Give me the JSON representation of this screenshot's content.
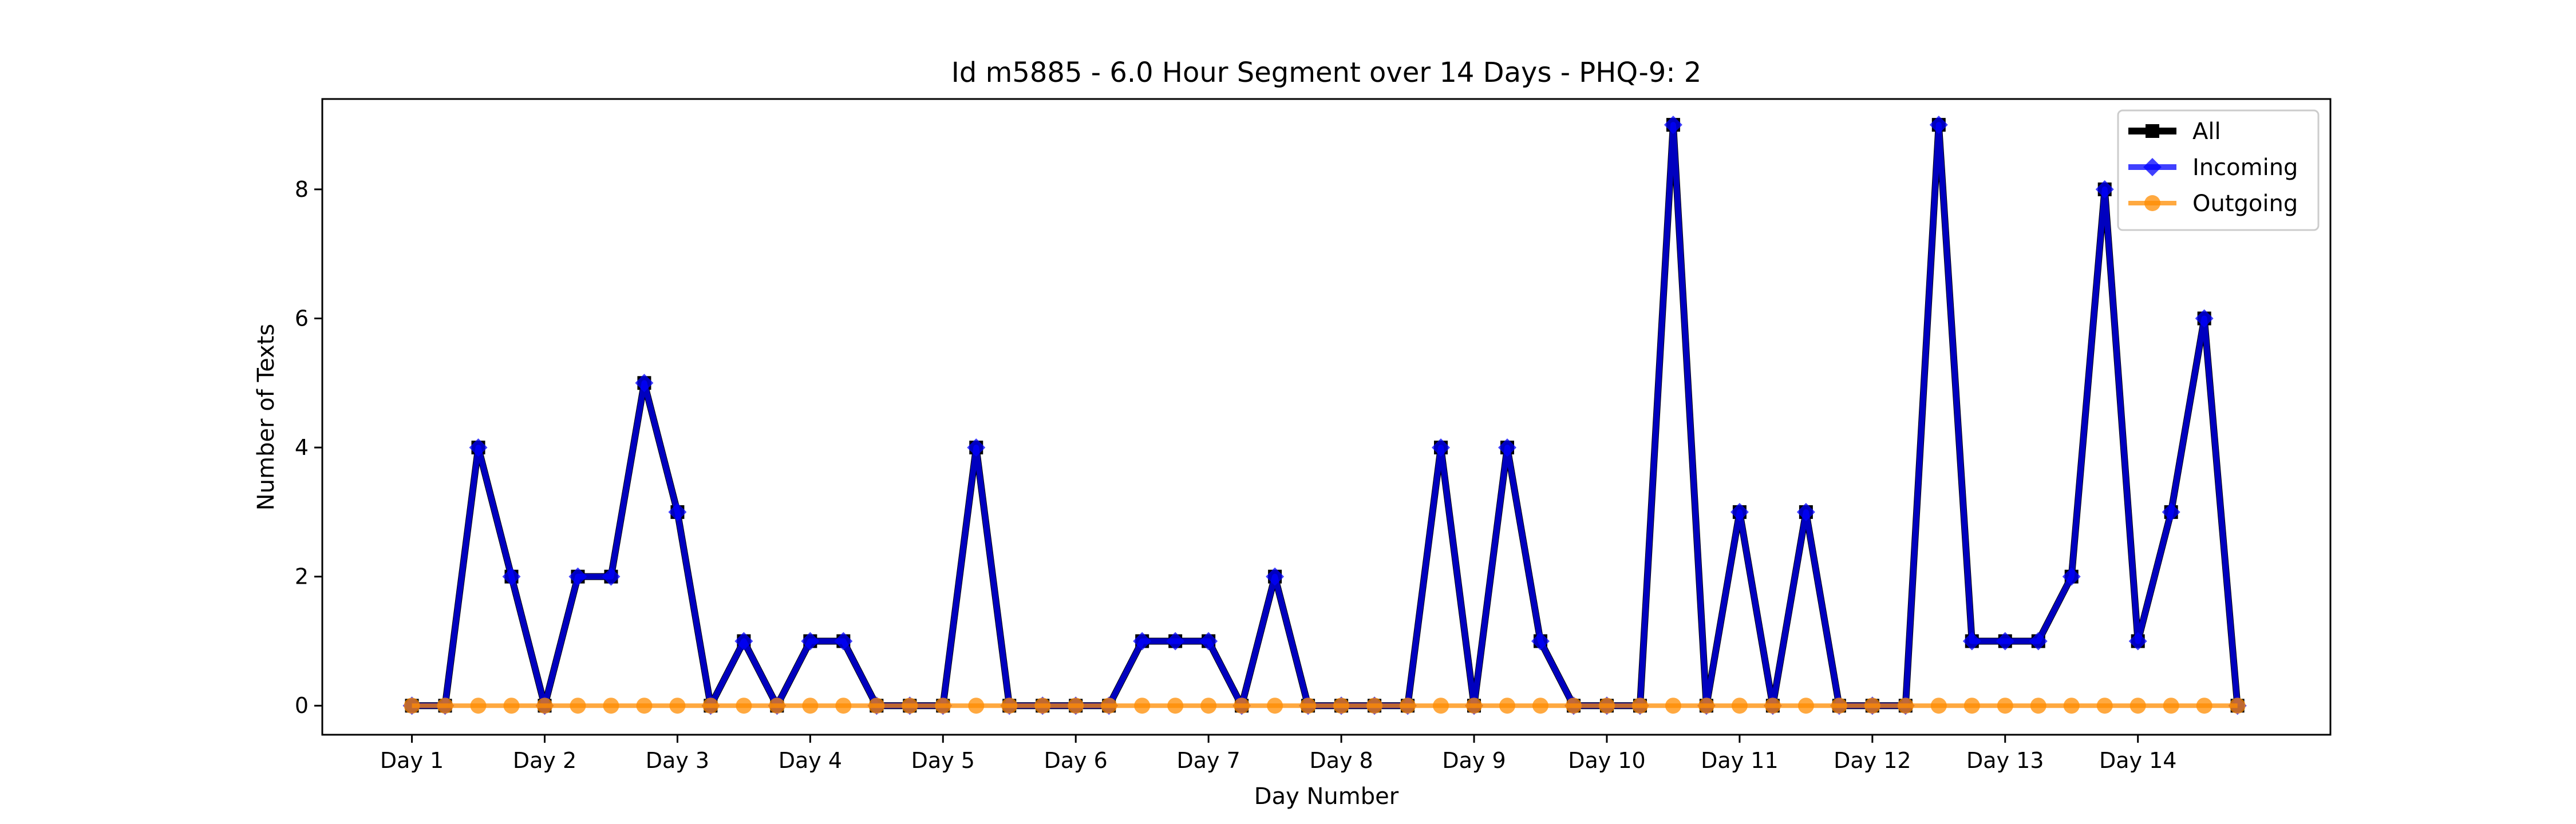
{
  "chart_data": {
    "type": "line",
    "title": "Id m5885 - 6.0 Hour Segment over 14 Days - PHQ-9: 2",
    "xlabel": "Day Number",
    "ylabel": "Number of Texts",
    "x_tick_labels": [
      "Day 1",
      "Day 2",
      "Day 3",
      "Day 4",
      "Day 5",
      "Day 6",
      "Day 7",
      "Day 8",
      "Day 9",
      "Day 10",
      "Day 11",
      "Day 12",
      "Day 13",
      "Day 14"
    ],
    "x_tick_positions": [
      0,
      4,
      8,
      12,
      16,
      20,
      24,
      28,
      32,
      36,
      40,
      44,
      48,
      52
    ],
    "y_ticks": [
      0,
      2,
      4,
      6,
      8
    ],
    "xlim": [
      -2.7,
      57.8
    ],
    "ylim": [
      -0.45,
      9.4
    ],
    "legend_position": "top-right",
    "x": [
      0,
      1,
      2,
      3,
      4,
      5,
      6,
      7,
      8,
      9,
      10,
      11,
      12,
      13,
      14,
      15,
      16,
      17,
      18,
      19,
      20,
      21,
      22,
      23,
      24,
      25,
      26,
      27,
      28,
      29,
      30,
      31,
      32,
      33,
      34,
      35,
      36,
      37,
      38,
      39,
      40,
      41,
      42,
      43,
      44,
      45,
      46,
      47,
      48,
      49,
      50,
      51,
      52,
      53,
      54,
      55
    ],
    "series": [
      {
        "name": "All",
        "color": "#000000",
        "marker": "square",
        "values": [
          0,
          0,
          4,
          2,
          0,
          2,
          2,
          5,
          3,
          0,
          1,
          0,
          1,
          1,
          0,
          0,
          0,
          4,
          0,
          0,
          0,
          0,
          1,
          1,
          1,
          0,
          2,
          0,
          0,
          0,
          0,
          4,
          0,
          4,
          1,
          0,
          0,
          0,
          9,
          0,
          3,
          0,
          3,
          0,
          0,
          0,
          9,
          1,
          1,
          1,
          2,
          8,
          1,
          3,
          6,
          0
        ]
      },
      {
        "name": "Incoming",
        "color": "#0000ff",
        "marker": "diamond",
        "values": [
          0,
          0,
          4,
          2,
          0,
          2,
          2,
          5,
          3,
          0,
          1,
          0,
          1,
          1,
          0,
          0,
          0,
          4,
          0,
          0,
          0,
          0,
          1,
          1,
          1,
          0,
          2,
          0,
          0,
          0,
          0,
          4,
          0,
          4,
          1,
          0,
          0,
          0,
          9,
          0,
          3,
          0,
          3,
          0,
          0,
          0,
          9,
          1,
          1,
          1,
          2,
          8,
          1,
          3,
          6,
          0
        ]
      },
      {
        "name": "Outgoing",
        "color": "#ff8c00",
        "marker": "circle",
        "values": [
          0,
          0,
          0,
          0,
          0,
          0,
          0,
          0,
          0,
          0,
          0,
          0,
          0,
          0,
          0,
          0,
          0,
          0,
          0,
          0,
          0,
          0,
          0,
          0,
          0,
          0,
          0,
          0,
          0,
          0,
          0,
          0,
          0,
          0,
          0,
          0,
          0,
          0,
          0,
          0,
          0,
          0,
          0,
          0,
          0,
          0,
          0,
          0,
          0,
          0,
          0,
          0,
          0,
          0,
          0,
          0
        ]
      }
    ]
  }
}
